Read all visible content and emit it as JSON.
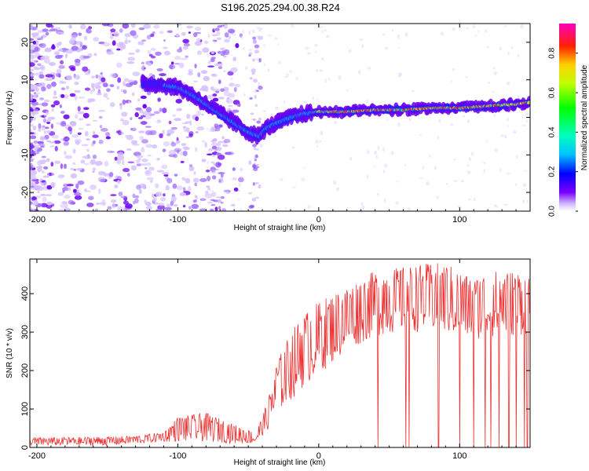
{
  "title": "S196.2025.294.00.38.R24",
  "chart_data": [
    {
      "type": "heatmap",
      "title": "S196.2025.294.00.38.R24",
      "xlabel": "Height of straight line (km)",
      "ylabel": "Frequency (Hz)",
      "xlim": [
        -205,
        150
      ],
      "ylim": [
        -25,
        25
      ],
      "xticks": [
        -200,
        -100,
        0,
        100
      ],
      "yticks": [
        -20,
        -10,
        0,
        10,
        20
      ],
      "colorbar": {
        "label": "Normalized spectral amplitude",
        "range": [
          0.0,
          0.95
        ],
        "ticks": [
          "0.0",
          "0.2",
          "0.4",
          "0.6",
          "0.8"
        ],
        "tick_values": [
          0.0,
          0.2,
          0.4,
          0.6,
          0.8
        ]
      },
      "ridge": {
        "x": [
          -120,
          -100,
          -90,
          -80,
          -70,
          -60,
          -50,
          -42,
          -38,
          -30,
          -20,
          -10,
          0,
          20,
          40,
          60,
          80,
          100,
          120,
          140,
          150
        ],
        "y": [
          9,
          8,
          6,
          3.5,
          1,
          -1.5,
          -4,
          -5,
          -3,
          -1.5,
          0,
          1,
          1.5,
          1.5,
          2,
          2,
          2.5,
          2.5,
          3,
          3.5,
          4
        ]
      }
    },
    {
      "type": "line",
      "xlabel": "Height of straight line (km)",
      "ylabel": "SNR (10 * v/v)",
      "xlim": [
        -205,
        150
      ],
      "ylim": [
        0,
        490
      ],
      "xticks": [
        -200,
        -100,
        0,
        100
      ],
      "yticks": [
        0,
        100,
        200,
        300,
        400
      ],
      "series": [
        {
          "name": "SNR",
          "color": "#ee3030",
          "envelope_x": [
            -205,
            -150,
            -130,
            -110,
            -100,
            -80,
            -60,
            -45,
            -40,
            -35,
            -30,
            -20,
            -10,
            0,
            10,
            20,
            30,
            40,
            60,
            80,
            90,
            100,
            110,
            120,
            130,
            140,
            150
          ],
          "envelope_low": [
            5,
            5,
            10,
            15,
            15,
            15,
            10,
            10,
            30,
            50,
            90,
            120,
            160,
            190,
            220,
            250,
            270,
            290,
            300,
            300,
            295,
            285,
            280,
            285,
            290,
            290,
            295
          ],
          "envelope_high": [
            25,
            28,
            30,
            40,
            80,
            90,
            60,
            40,
            80,
            140,
            220,
            300,
            350,
            380,
            400,
            420,
            440,
            460,
            470,
            480,
            480,
            460,
            440,
            460,
            460,
            460,
            450
          ],
          "dropouts_x": [
            42,
            62,
            64,
            85,
            100,
            110,
            118,
            122,
            128,
            135,
            140,
            146,
            148
          ]
        }
      ]
    }
  ]
}
